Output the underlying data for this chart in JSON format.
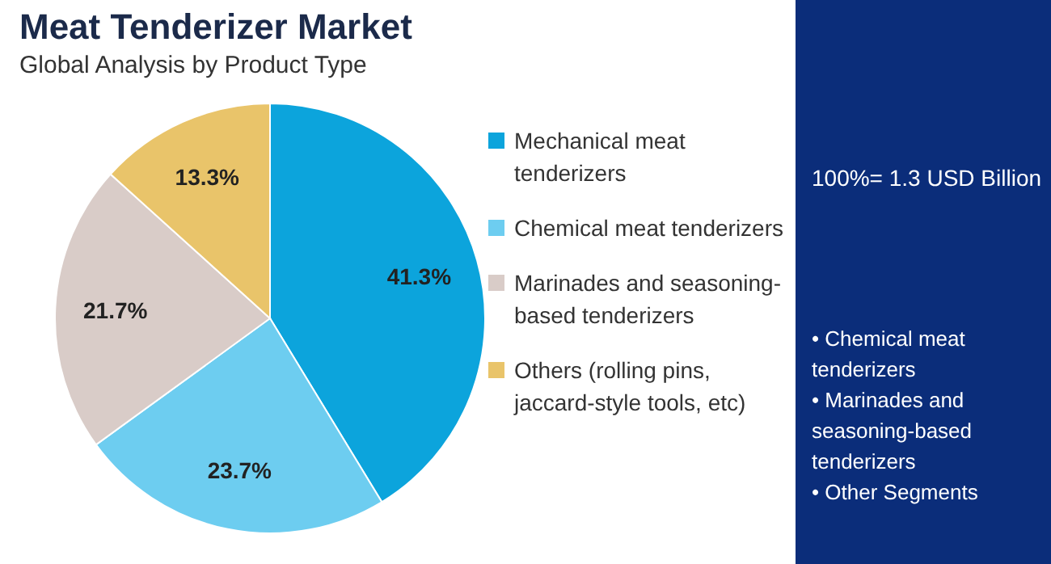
{
  "chart_data": {
    "type": "pie",
    "title": "Meat Tenderizer Market",
    "subtitle": "Global Analysis by Product Type",
    "categories": [
      "Mechanical meat tenderizers",
      "Chemical meat tenderizers",
      "Marinades and seasoning-based tenderizers",
      "Others (rolling pins, jaccard-style tools, etc)"
    ],
    "values": [
      41.3,
      23.7,
      21.7,
      13.3
    ],
    "colors": [
      "#0ca4dc",
      "#6dcdf0",
      "#d9ccc8",
      "#e9c46a"
    ],
    "value_labels": [
      "41.3%",
      "23.7%",
      "21.7%",
      "13.3%"
    ],
    "legend": "right",
    "annotations": [
      "100%= 1.3 USD Billion",
      "• Chemical meat tenderizers",
      "• Marinades and seasoning-based tenderizers",
      "• Other Segments"
    ]
  }
}
